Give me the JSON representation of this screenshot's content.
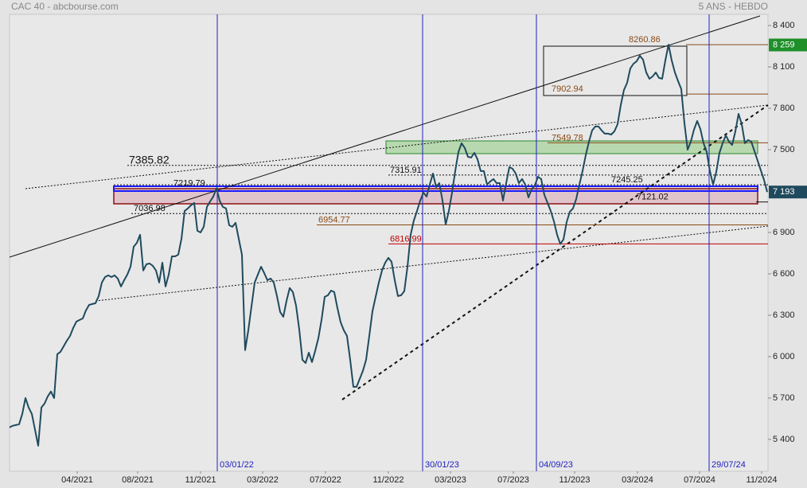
{
  "chart_data": {
    "type": "line",
    "title": "CAC 40 - abcbourse.com",
    "subtitle": "5 ANS - HEBDO",
    "color": "#1f4a5e",
    "values": [
      5487,
      5499,
      5504,
      5510,
      5585,
      5700,
      5631,
      5585,
      5470,
      5354,
      5631,
      5660,
      5712,
      5747,
      5700,
      6018,
      6035,
      6075,
      6116,
      6150,
      6208,
      6254,
      6266,
      6277,
      6335,
      6375,
      6381,
      6387,
      6439,
      6537,
      6577,
      6589,
      6577,
      6589,
      6566,
      6508,
      6554,
      6595,
      6652,
      6797,
      6825,
      6883,
      6624,
      6670,
      6675,
      6658,
      6624,
      6537,
      6681,
      6508,
      6595,
      6727,
      6727,
      6739,
      6854,
      7056,
      7074,
      7097,
      7114,
      6912,
      6900,
      6941,
      7085,
      7125,
      7160,
      7220,
      7131,
      7085,
      7074,
      6952,
      6941,
      6970,
      6854,
      6739,
      6047,
      6191,
      6364,
      6537,
      6595,
      6652,
      6606,
      6554,
      6566,
      6537,
      6439,
      6324,
      6289,
      6404,
      6497,
      6468,
      6370,
      6197,
      5977,
      5954,
      6029,
      5960,
      6041,
      6133,
      6266,
      6433,
      6445,
      6479,
      6468,
      6352,
      6249,
      6191,
      6150,
      5977,
      5781,
      5781,
      5839,
      5897,
      5977,
      6150,
      6329,
      6433,
      6537,
      6624,
      6681,
      6716,
      6687,
      6554,
      6439,
      6445,
      6474,
      6652,
      6883,
      6987,
      7056,
      7131,
      7189,
      7160,
      7247,
      7327,
      7229,
      7258,
      7131,
      6958,
      7056,
      7189,
      7345,
      7483,
      7547,
      7512,
      7448,
      7443,
      7477,
      7431,
      7345,
      7345,
      7247,
      7270,
      7287,
      7258,
      7258,
      7131,
      7258,
      7374,
      7362,
      7327,
      7258,
      7287,
      7247,
      7154,
      7212,
      7241,
      7304,
      7287,
      7172,
      7114,
      7056,
      6981,
      6883,
      6817,
      6849,
      6975,
      7050,
      7074,
      7143,
      7247,
      7345,
      7460,
      7558,
      7639,
      7668,
      7668,
      7639,
      7616,
      7616,
      7610,
      7633,
      7685,
      7823,
      7933,
      7985,
      8089,
      8123,
      8141,
      8181,
      8152,
      8060,
      8014,
      8031,
      8060,
      8020,
      8014,
      8147,
      8261,
      8147,
      8060,
      7997,
      7939,
      7691,
      7500,
      7558,
      7645,
      7708,
      7650,
      7547,
      7483,
      7345,
      7247,
      7339,
      7477,
      7547,
      7604,
      7558,
      7535,
      7633,
      7760,
      7685,
      7547,
      7570,
      7558,
      7489,
      7420,
      7350,
      7281,
      7193
    ],
    "xlim": [
      0,
      238.25
    ],
    "xticks": [
      {
        "value": 21.25,
        "label": "04/2021"
      },
      {
        "value": 40.25,
        "label": "08/2021"
      },
      {
        "value": 60,
        "label": "11/2021"
      },
      {
        "value": 79.5,
        "label": "03/2022"
      },
      {
        "value": 99.25,
        "label": "07/2022"
      },
      {
        "value": 119,
        "label": "11/2022"
      },
      {
        "value": 138.5,
        "label": "03/2023"
      },
      {
        "value": 158.25,
        "label": "07/2023"
      },
      {
        "value": 177.5,
        "label": "11/2023"
      },
      {
        "value": 197.25,
        "label": "03/2024"
      },
      {
        "value": 216.75,
        "label": "07/2024"
      },
      {
        "value": 236.25,
        "label": "11/2024"
      }
    ],
    "ylim": [
      5169,
      8481
    ],
    "yticks": [
      {
        "value": 5400,
        "label": "5 400"
      },
      {
        "value": 5700,
        "label": "5 700"
      },
      {
        "value": 6000,
        "label": "6 000"
      },
      {
        "value": 6300,
        "label": "6 300"
      },
      {
        "value": 6600,
        "label": "6 600"
      },
      {
        "value": 6900,
        "label": "6 900"
      },
      {
        "value": 7500,
        "label": "7 500"
      },
      {
        "value": 7800,
        "label": "7 800"
      },
      {
        "value": 8100,
        "label": "8 100"
      },
      {
        "value": 8400,
        "label": "8 400"
      }
    ],
    "markers": [
      {
        "value": 8259,
        "label": "8 259",
        "color": "#1f8f2a"
      },
      {
        "value": 7193,
        "label": "7 193",
        "color": "#1f4a5e"
      }
    ],
    "events": [
      {
        "x": 65.25,
        "label": "03/01/22"
      },
      {
        "x": 129.75,
        "label": "30/01/23"
      },
      {
        "x": 165.5,
        "label": "04/09/23"
      },
      {
        "x": 219.75,
        "label": "29/07/24"
      }
    ],
    "levels": [
      {
        "value": 8260.86,
        "color": "#8b4a14",
        "style": "solid"
      },
      {
        "value": 7902.94,
        "color": "#8b4a14",
        "style": "solid"
      },
      {
        "value": 7549.78,
        "color": "#8b4a14",
        "style": "solid"
      },
      {
        "value": 7385.82,
        "color": "#111111",
        "style": "dotted"
      },
      {
        "value": 7315.91,
        "color": "#111111",
        "style": "dotted"
      },
      {
        "value": 7245.25,
        "color": "#111111",
        "style": "dotted"
      },
      {
        "value": 7219.79,
        "color": "#111111",
        "style": "none"
      },
      {
        "value": 7121.02,
        "color": "#111111",
        "style": "solid"
      },
      {
        "value": 7036.98,
        "color": "#111111",
        "style": "dotted"
      },
      {
        "value": 6954.77,
        "color": "#8b4a14",
        "style": "solid"
      },
      {
        "value": 6816.99,
        "color": "#c00000",
        "style": "solid"
      }
    ]
  }
}
